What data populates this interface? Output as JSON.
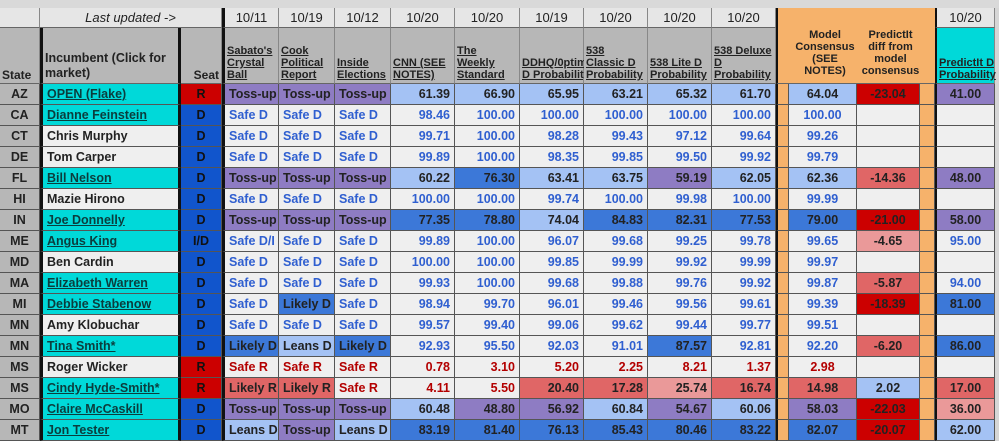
{
  "header": {
    "last_updated": "Last updated ->",
    "dates": [
      "10/11",
      "10/19",
      "10/12",
      "10/20",
      "10/20",
      "10/19",
      "10/20",
      "10/20",
      "10/20"
    ],
    "predictit_date": "10/20",
    "state": "State",
    "incumbent": "Incumbent (Click for market)",
    "seat": "Seat",
    "sources": [
      "Sabato's Crystal Ball",
      "Cook Political Report",
      "Inside Elections",
      "CNN (SEE NOTES)",
      "The Weekly Standard",
      "DDHQ/0ptimus D Probability",
      "538 Classic D Probability",
      "538 Lite D Probability",
      "538 Deluxe D Probability"
    ],
    "model_consensus": "Model Consensus (SEE NOTES)",
    "predictit_diff": "PredictIt diff from model consensus",
    "predictit": "PredictIt D Probability"
  },
  "colors": {
    "toss_up": "#8e7cc3",
    "leans_d": "#a4c2f4",
    "likely_d": "#3c78d8",
    "safe_d_text": "#2f5fd0",
    "safe_r_text": "#b30000",
    "likely_r": "#e06666",
    "leans_r": "#ea9999",
    "strong_diff": "#cc0000",
    "incumbent_link": "#00d9d9",
    "seat_d": "#1155cc",
    "seat_r": "#cc0000",
    "consensus_band": "#f6b26b"
  },
  "rows": [
    {
      "state": "AZ",
      "incumbent": "OPEN (Flake)",
      "link": true,
      "seat": "R",
      "ratings": [
        [
          "Toss-up",
          "tu"
        ],
        [
          "Toss-up",
          "tu"
        ],
        [
          "Toss-up",
          "tu"
        ]
      ],
      "probs": [
        [
          "61.39",
          "lb"
        ],
        [
          "66.90",
          "lb"
        ],
        [
          "65.95",
          "lb"
        ],
        [
          "63.21",
          "lb"
        ],
        [
          "65.32",
          "lb"
        ],
        [
          "61.70",
          "lb"
        ]
      ],
      "consensus": [
        "64.04",
        "lb"
      ],
      "diff": [
        "-23.04",
        "dr"
      ],
      "predictit": [
        "41.00",
        "tu"
      ]
    },
    {
      "state": "CA",
      "incumbent": "Dianne Feinstein",
      "link": true,
      "seat": "D",
      "ratings": [
        [
          "Safe D",
          "sd"
        ],
        [
          "Safe D",
          "sd"
        ],
        [
          "Safe D",
          "sd"
        ]
      ],
      "probs": [
        [
          "98.46",
          "sd"
        ],
        [
          "100.00",
          "sd"
        ],
        [
          "100.00",
          "sd"
        ],
        [
          "100.00",
          "sd"
        ],
        [
          "100.00",
          "sd"
        ],
        [
          "100.00",
          "sd"
        ]
      ],
      "consensus": [
        "100.00",
        "sd"
      ],
      "diff": [
        "",
        "none"
      ],
      "predictit": [
        "",
        "none"
      ]
    },
    {
      "state": "CT",
      "incumbent": "Chris Murphy",
      "link": false,
      "seat": "D",
      "ratings": [
        [
          "Safe D",
          "sd"
        ],
        [
          "Safe D",
          "sd"
        ],
        [
          "Safe D",
          "sd"
        ]
      ],
      "probs": [
        [
          "99.71",
          "sd"
        ],
        [
          "100.00",
          "sd"
        ],
        [
          "98.28",
          "sd"
        ],
        [
          "99.43",
          "sd"
        ],
        [
          "97.12",
          "sd"
        ],
        [
          "99.64",
          "sd"
        ]
      ],
      "consensus": [
        "99.26",
        "sd"
      ],
      "diff": [
        "",
        "none"
      ],
      "predictit": [
        "",
        "none"
      ]
    },
    {
      "state": "DE",
      "incumbent": "Tom Carper",
      "link": false,
      "seat": "D",
      "ratings": [
        [
          "Safe D",
          "sd"
        ],
        [
          "Safe D",
          "sd"
        ],
        [
          "Safe D",
          "sd"
        ]
      ],
      "probs": [
        [
          "99.89",
          "sd"
        ],
        [
          "100.00",
          "sd"
        ],
        [
          "98.35",
          "sd"
        ],
        [
          "99.85",
          "sd"
        ],
        [
          "99.50",
          "sd"
        ],
        [
          "99.92",
          "sd"
        ]
      ],
      "consensus": [
        "99.79",
        "sd"
      ],
      "diff": [
        "",
        "none"
      ],
      "predictit": [
        "",
        "none"
      ]
    },
    {
      "state": "FL",
      "incumbent": "Bill Nelson",
      "link": true,
      "seat": "D",
      "ratings": [
        [
          "Toss-up",
          "tu"
        ],
        [
          "Toss-up",
          "tu"
        ],
        [
          "Toss-up",
          "tu"
        ]
      ],
      "probs": [
        [
          "60.22",
          "lb"
        ],
        [
          "76.30",
          "bl"
        ],
        [
          "63.41",
          "lb"
        ],
        [
          "63.75",
          "lb"
        ],
        [
          "59.19",
          "tu"
        ],
        [
          "62.05",
          "lb"
        ]
      ],
      "consensus": [
        "62.36",
        "lb"
      ],
      "diff": [
        "-14.36",
        "lr"
      ],
      "predictit": [
        "48.00",
        "tu"
      ]
    },
    {
      "state": "HI",
      "incumbent": "Mazie Hirono",
      "link": false,
      "seat": "D",
      "ratings": [
        [
          "Safe D",
          "sd"
        ],
        [
          "Safe D",
          "sd"
        ],
        [
          "Safe D",
          "sd"
        ]
      ],
      "probs": [
        [
          "100.00",
          "sd"
        ],
        [
          "100.00",
          "sd"
        ],
        [
          "99.74",
          "sd"
        ],
        [
          "100.00",
          "sd"
        ],
        [
          "99.98",
          "sd"
        ],
        [
          "100.00",
          "sd"
        ]
      ],
      "consensus": [
        "99.99",
        "sd"
      ],
      "diff": [
        "",
        "none"
      ],
      "predictit": [
        "",
        "none"
      ]
    },
    {
      "state": "IN",
      "incumbent": "Joe Donnelly",
      "link": true,
      "seat": "D",
      "ratings": [
        [
          "Toss-up",
          "tu"
        ],
        [
          "Toss-up",
          "tu"
        ],
        [
          "Toss-up",
          "tu"
        ]
      ],
      "probs": [
        [
          "77.35",
          "bl"
        ],
        [
          "78.80",
          "bl"
        ],
        [
          "74.04",
          "lb"
        ],
        [
          "84.83",
          "bl"
        ],
        [
          "82.31",
          "bl"
        ],
        [
          "77.53",
          "bl"
        ]
      ],
      "consensus": [
        "79.00",
        "bl"
      ],
      "diff": [
        "-21.00",
        "dr"
      ],
      "predictit": [
        "58.00",
        "tu"
      ]
    },
    {
      "state": "ME",
      "incumbent": "Angus King",
      "link": true,
      "seat": "I/D",
      "ratings": [
        [
          "Safe D/I",
          "sd"
        ],
        [
          "Safe D",
          "sd"
        ],
        [
          "Safe D",
          "sd"
        ]
      ],
      "probs": [
        [
          "99.89",
          "sd"
        ],
        [
          "100.00",
          "sd"
        ],
        [
          "96.07",
          "sd"
        ],
        [
          "99.68",
          "sd"
        ],
        [
          "99.25",
          "sd"
        ],
        [
          "99.78",
          "sd"
        ]
      ],
      "consensus": [
        "99.65",
        "sd"
      ],
      "diff": [
        "-4.65",
        "pr"
      ],
      "predictit": [
        "95.00",
        "sd"
      ]
    },
    {
      "state": "MD",
      "incumbent": "Ben Cardin",
      "link": false,
      "seat": "D",
      "ratings": [
        [
          "Safe D",
          "sd"
        ],
        [
          "Safe D",
          "sd"
        ],
        [
          "Safe D",
          "sd"
        ]
      ],
      "probs": [
        [
          "100.00",
          "sd"
        ],
        [
          "100.00",
          "sd"
        ],
        [
          "99.85",
          "sd"
        ],
        [
          "99.99",
          "sd"
        ],
        [
          "99.92",
          "sd"
        ],
        [
          "99.99",
          "sd"
        ]
      ],
      "consensus": [
        "99.97",
        "sd"
      ],
      "diff": [
        "",
        "none"
      ],
      "predictit": [
        "",
        "none"
      ]
    },
    {
      "state": "MA",
      "incumbent": "Elizabeth Warren",
      "link": true,
      "seat": "D",
      "ratings": [
        [
          "Safe D",
          "sd"
        ],
        [
          "Safe D",
          "sd"
        ],
        [
          "Safe D",
          "sd"
        ]
      ],
      "probs": [
        [
          "99.93",
          "sd"
        ],
        [
          "100.00",
          "sd"
        ],
        [
          "99.68",
          "sd"
        ],
        [
          "99.88",
          "sd"
        ],
        [
          "99.76",
          "sd"
        ],
        [
          "99.92",
          "sd"
        ]
      ],
      "consensus": [
        "99.87",
        "sd"
      ],
      "diff": [
        "-5.87",
        "lr"
      ],
      "predictit": [
        "94.00",
        "sd"
      ]
    },
    {
      "state": "MI",
      "incumbent": "Debbie Stabenow",
      "link": true,
      "seat": "D",
      "ratings": [
        [
          "Safe D",
          "sd"
        ],
        [
          "Likely D",
          "bl"
        ],
        [
          "Safe D",
          "sd"
        ]
      ],
      "probs": [
        [
          "98.94",
          "sd"
        ],
        [
          "99.70",
          "sd"
        ],
        [
          "96.01",
          "sd"
        ],
        [
          "99.46",
          "sd"
        ],
        [
          "99.56",
          "sd"
        ],
        [
          "99.61",
          "sd"
        ]
      ],
      "consensus": [
        "99.39",
        "sd"
      ],
      "diff": [
        "-18.39",
        "dr"
      ],
      "predictit": [
        "81.00",
        "bl"
      ]
    },
    {
      "state": "MN",
      "incumbent": "Amy Klobuchar",
      "link": false,
      "seat": "D",
      "ratings": [
        [
          "Safe D",
          "sd"
        ],
        [
          "Safe D",
          "sd"
        ],
        [
          "Safe D",
          "sd"
        ]
      ],
      "probs": [
        [
          "99.57",
          "sd"
        ],
        [
          "99.40",
          "sd"
        ],
        [
          "99.06",
          "sd"
        ],
        [
          "99.62",
          "sd"
        ],
        [
          "99.44",
          "sd"
        ],
        [
          "99.77",
          "sd"
        ]
      ],
      "consensus": [
        "99.51",
        "sd"
      ],
      "diff": [
        "",
        "none"
      ],
      "predictit": [
        "",
        "none"
      ]
    },
    {
      "state": "MN",
      "incumbent": "Tina Smith*",
      "link": true,
      "seat": "D",
      "ratings": [
        [
          "Likely D",
          "bl"
        ],
        [
          "Leans D",
          "lb"
        ],
        [
          "Likely D",
          "bl"
        ]
      ],
      "probs": [
        [
          "92.93",
          "sd"
        ],
        [
          "95.50",
          "sd"
        ],
        [
          "92.03",
          "sd"
        ],
        [
          "91.01",
          "sd"
        ],
        [
          "87.57",
          "bl"
        ],
        [
          "92.81",
          "sd"
        ]
      ],
      "consensus": [
        "92.20",
        "sd"
      ],
      "diff": [
        "-6.20",
        "lr"
      ],
      "predictit": [
        "86.00",
        "bl"
      ]
    },
    {
      "state": "MS",
      "incumbent": "Roger Wicker",
      "link": false,
      "seat": "R",
      "ratings": [
        [
          "Safe R",
          "sr"
        ],
        [
          "Safe R",
          "sr"
        ],
        [
          "Safe R",
          "sr"
        ]
      ],
      "probs": [
        [
          "0.78",
          "sr"
        ],
        [
          "3.10",
          "sr"
        ],
        [
          "5.20",
          "sr"
        ],
        [
          "2.25",
          "sr"
        ],
        [
          "8.21",
          "sr"
        ],
        [
          "1.37",
          "sr"
        ]
      ],
      "consensus": [
        "2.98",
        "sr"
      ],
      "diff": [
        "",
        "none"
      ],
      "predictit": [
        "",
        "none"
      ]
    },
    {
      "state": "MS",
      "incumbent": "Cindy Hyde-Smith*",
      "link": true,
      "seat": "R",
      "ratings": [
        [
          "Likely R",
          "lr"
        ],
        [
          "Likely R",
          "lr"
        ],
        [
          "Safe R",
          "sr"
        ]
      ],
      "probs": [
        [
          "4.11",
          "sr"
        ],
        [
          "5.50",
          "sr"
        ],
        [
          "20.40",
          "lr"
        ],
        [
          "17.28",
          "lr"
        ],
        [
          "25.74",
          "pr"
        ],
        [
          "16.74",
          "lr"
        ]
      ],
      "consensus": [
        "14.98",
        "lr"
      ],
      "diff": [
        "2.02",
        "lb"
      ],
      "predictit": [
        "17.00",
        "lr"
      ]
    },
    {
      "state": "MO",
      "incumbent": "Claire McCaskill",
      "link": true,
      "seat": "D",
      "ratings": [
        [
          "Toss-up",
          "tu"
        ],
        [
          "Toss-up",
          "tu"
        ],
        [
          "Toss-up",
          "tu"
        ]
      ],
      "probs": [
        [
          "60.48",
          "lb"
        ],
        [
          "48.80",
          "tu"
        ],
        [
          "56.92",
          "tu"
        ],
        [
          "60.84",
          "lb"
        ],
        [
          "54.67",
          "tu"
        ],
        [
          "60.06",
          "lb"
        ]
      ],
      "consensus": [
        "58.03",
        "tu"
      ],
      "diff": [
        "-22.03",
        "dr"
      ],
      "predictit": [
        "36.00",
        "pr"
      ]
    },
    {
      "state": "MT",
      "incumbent": "Jon Tester",
      "link": true,
      "seat": "D",
      "ratings": [
        [
          "Leans D",
          "lb"
        ],
        [
          "Toss-up",
          "tu"
        ],
        [
          "Leans D",
          "lb"
        ]
      ],
      "probs": [
        [
          "83.19",
          "bl"
        ],
        [
          "81.40",
          "bl"
        ],
        [
          "76.13",
          "bl"
        ],
        [
          "85.43",
          "bl"
        ],
        [
          "80.46",
          "bl"
        ],
        [
          "83.22",
          "bl"
        ]
      ],
      "consensus": [
        "82.07",
        "bl"
      ],
      "diff": [
        "-20.07",
        "dr"
      ],
      "predictit": [
        "62.00",
        "lb"
      ]
    }
  ]
}
